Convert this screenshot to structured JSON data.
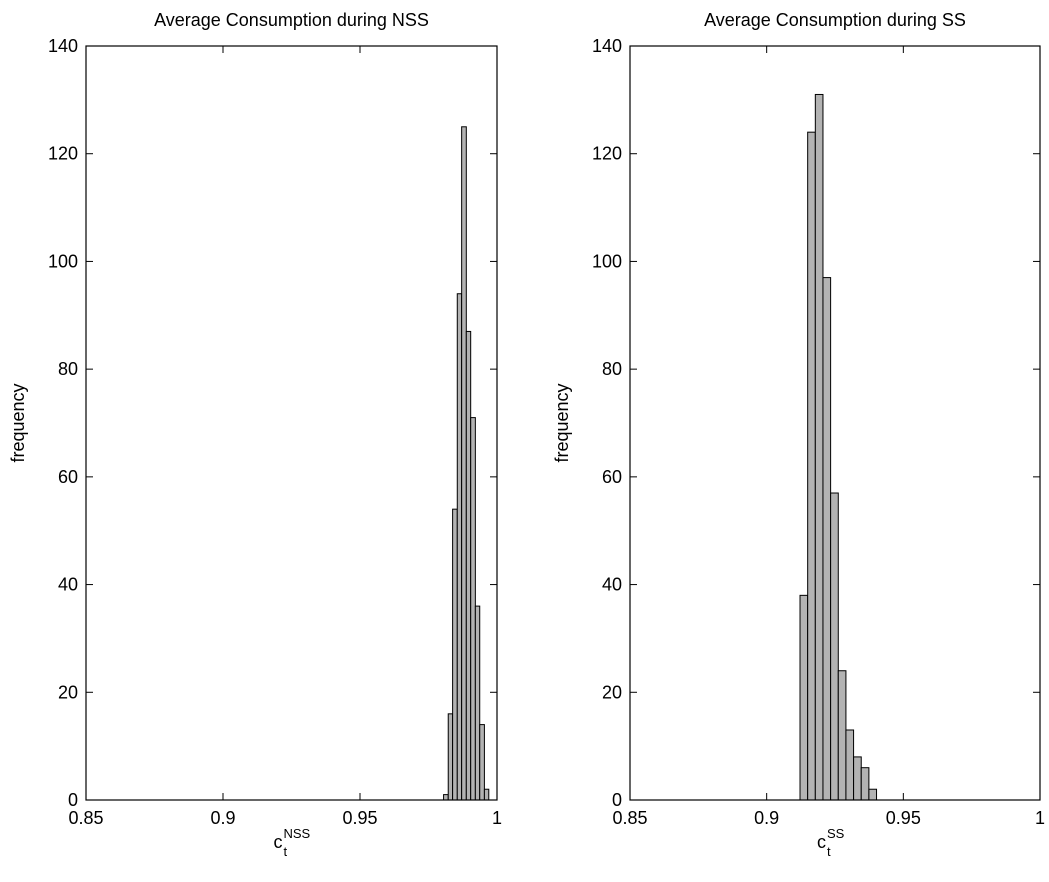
{
  "chart_data": [
    {
      "type": "bar",
      "title": "Average Consumption during NSS",
      "xlabel": {
        "base": "c",
        "sub": "t",
        "sup": "NSS"
      },
      "ylabel": "frequency",
      "xlim": [
        0.85,
        1
      ],
      "ylim": [
        0,
        140
      ],
      "xticks": [
        "0.85",
        "0.9",
        "0.95",
        "1"
      ],
      "yticks": [
        "0",
        "20",
        "40",
        "60",
        "80",
        "100",
        "120",
        "140"
      ],
      "bar_color": "#b3b3b3",
      "bars": [
        {
          "x0": 0.9805,
          "x1": 0.9822,
          "value": 1
        },
        {
          "x0": 0.9822,
          "x1": 0.9838,
          "value": 16
        },
        {
          "x0": 0.9838,
          "x1": 0.9855,
          "value": 54
        },
        {
          "x0": 0.9855,
          "x1": 0.9871,
          "value": 94
        },
        {
          "x0": 0.9871,
          "x1": 0.9888,
          "value": 125
        },
        {
          "x0": 0.9888,
          "x1": 0.9904,
          "value": 87
        },
        {
          "x0": 0.9904,
          "x1": 0.9921,
          "value": 71
        },
        {
          "x0": 0.9921,
          "x1": 0.9937,
          "value": 36
        },
        {
          "x0": 0.9937,
          "x1": 0.9954,
          "value": 14
        },
        {
          "x0": 0.9954,
          "x1": 0.997,
          "value": 2
        }
      ]
    },
    {
      "type": "bar",
      "title": "Average Consumption during SS",
      "xlabel": {
        "base": "c",
        "sub": "t",
        "sup": "SS"
      },
      "ylabel": "frequency",
      "xlim": [
        0.85,
        1
      ],
      "ylim": [
        0,
        140
      ],
      "xticks": [
        "0.85",
        "0.9",
        "0.95",
        "1"
      ],
      "yticks": [
        "0",
        "20",
        "40",
        "60",
        "80",
        "100",
        "120",
        "140"
      ],
      "bar_color": "#b3b3b3",
      "bars": [
        {
          "x0": 0.9122,
          "x1": 0.915,
          "value": 38
        },
        {
          "x0": 0.915,
          "x1": 0.9178,
          "value": 124
        },
        {
          "x0": 0.9178,
          "x1": 0.9206,
          "value": 131
        },
        {
          "x0": 0.9206,
          "x1": 0.9234,
          "value": 97
        },
        {
          "x0": 0.9234,
          "x1": 0.9262,
          "value": 57
        },
        {
          "x0": 0.9262,
          "x1": 0.929,
          "value": 24
        },
        {
          "x0": 0.929,
          "x1": 0.9318,
          "value": 13
        },
        {
          "x0": 0.9318,
          "x1": 0.9346,
          "value": 8
        },
        {
          "x0": 0.9346,
          "x1": 0.9374,
          "value": 6
        },
        {
          "x0": 0.9374,
          "x1": 0.9402,
          "value": 2
        }
      ]
    }
  ]
}
